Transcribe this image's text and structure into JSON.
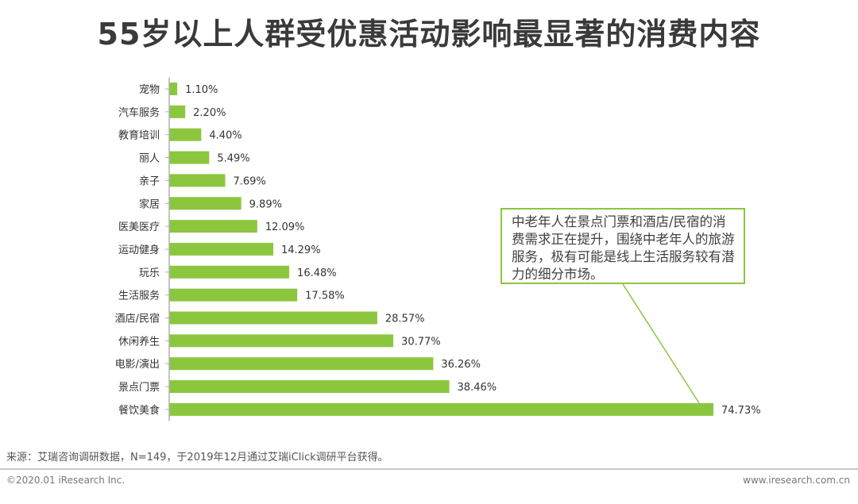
{
  "chart_data": {
    "type": "bar",
    "orientation": "horizontal",
    "title": "55岁以上人群受优惠活动影响最显著的消费内容",
    "unit": "%",
    "categories": [
      "宠物",
      "汽车服务",
      "教育培训",
      "丽人",
      "亲子",
      "家居",
      "医美医疗",
      "运动健身",
      "玩乐",
      "生活服务",
      "酒店/民宿",
      "休闲养生",
      "电影/演出",
      "景点门票",
      "餐饮美食"
    ],
    "values": [
      1.1,
      2.2,
      4.4,
      5.49,
      7.69,
      9.89,
      12.09,
      14.29,
      16.48,
      17.58,
      28.57,
      30.77,
      36.26,
      38.46,
      74.73
    ],
    "labels": [
      "1.10%",
      "2.20%",
      "4.40%",
      "5.49%",
      "7.69%",
      "9.89%",
      "12.09%",
      "14.29%",
      "16.48%",
      "17.58%",
      "28.57%",
      "30.77%",
      "36.26%",
      "38.46%",
      "74.73%"
    ],
    "xlim": [
      0,
      74.73
    ],
    "bar_color": "#8cc63f",
    "axis_color": "#b0b0b0",
    "annotation": "中老年人在景点门票和酒店/民宿的消费需求正在提升，围绕中老年人的旅游服务，极有可能是线上生活服务较有潜力的细分市场。"
  },
  "footer": {
    "source": "来源：艾瑞咨询调研数据，N=149，于2019年12月通过艾瑞iClick调研平台获得。",
    "copyright": "©2020.01 iResearch Inc.",
    "website": "www.iresearch.com.cn"
  }
}
